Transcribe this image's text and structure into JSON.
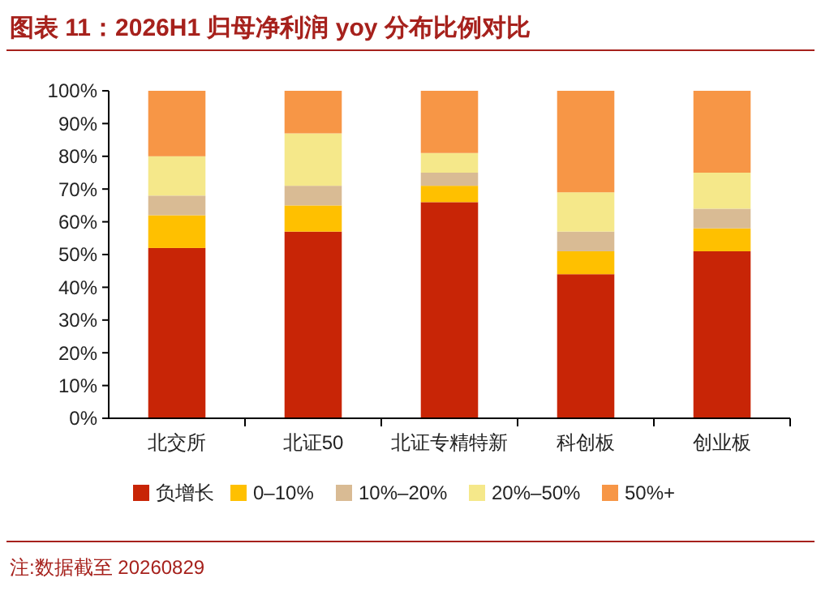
{
  "chart_data": {
    "type": "bar",
    "title": "图表 11：2026H1 归母净利润 yoy 分布比例对比",
    "categories": [
      "北交所",
      "北证50",
      "北证专精特新",
      "科创板",
      "创业板"
    ],
    "stacked": true,
    "series": [
      {
        "name": "负增长",
        "color": "#c82506",
        "values": [
          52,
          57,
          66,
          44,
          51
        ]
      },
      {
        "name": "0–10%",
        "color": "#ffc000",
        "values": [
          10,
          8,
          5,
          7,
          7
        ]
      },
      {
        "name": "10%–20%",
        "color": "#d9bb94",
        "values": [
          6,
          6,
          4,
          6,
          6
        ]
      },
      {
        "name": "20%–50%",
        "color": "#f5e88a",
        "values": [
          12,
          16,
          6,
          12,
          11
        ]
      },
      {
        "name": "50%+",
        "color": "#f79646",
        "values": [
          20,
          13,
          19,
          31,
          25
        ]
      }
    ],
    "ylim": [
      0,
      100
    ],
    "yticks": [
      {
        "value": 0,
        "label": "0%"
      },
      {
        "value": 10,
        "label": "10%"
      },
      {
        "value": 20,
        "label": "20%"
      },
      {
        "value": 30,
        "label": "30%"
      },
      {
        "value": 40,
        "label": "40%"
      },
      {
        "value": 50,
        "label": "50%"
      },
      {
        "value": 60,
        "label": "60%"
      },
      {
        "value": 70,
        "label": "70%"
      },
      {
        "value": 80,
        "label": "80%"
      },
      {
        "value": 90,
        "label": "90%"
      },
      {
        "value": 100,
        "label": "100%"
      }
    ],
    "legend": "bottom",
    "annotations": [
      "注:数据截至 20260829"
    ]
  }
}
